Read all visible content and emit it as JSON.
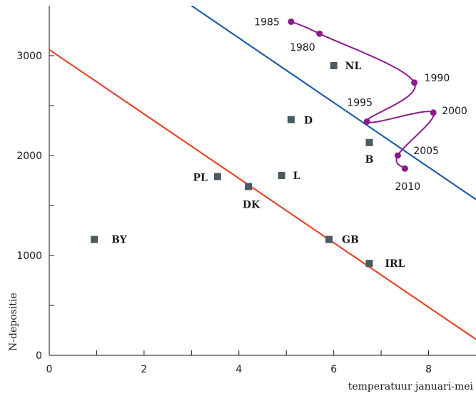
{
  "chart_data": {
    "type": "scatter",
    "title": "",
    "xlabel": "temperatuur januari-mei",
    "ylabel": "N-depositie",
    "xlim": [
      0,
      9
    ],
    "ylim": [
      0,
      3500
    ],
    "x_ticks": [
      0,
      2,
      4,
      6,
      8
    ],
    "x_minor_ticks": [
      1,
      3,
      5,
      7
    ],
    "y_ticks": [
      0,
      1000,
      2000,
      3000
    ],
    "y_minor_ticks": [
      500,
      1500,
      2500
    ],
    "grid": false,
    "colors": {
      "points": "#4a5a63",
      "trajectory": "#8b1a8b",
      "blue_line": "#1f5fa8",
      "red_line": "#e8452a",
      "axis": "#1a1a1a"
    },
    "country_points": [
      {
        "label": "NL",
        "x": 6.0,
        "y": 2900
      },
      {
        "label": "D",
        "x": 5.1,
        "y": 2360
      },
      {
        "label": "B",
        "x": 6.75,
        "y": 2130
      },
      {
        "label": "PL",
        "x": 3.55,
        "y": 1790
      },
      {
        "label": "L",
        "x": 4.9,
        "y": 1800
      },
      {
        "label": "DK",
        "x": 4.2,
        "y": 1690
      },
      {
        "label": "BY",
        "x": 0.95,
        "y": 1160
      },
      {
        "label": "GB",
        "x": 5.9,
        "y": 1160
      },
      {
        "label": "IRL",
        "x": 6.75,
        "y": 920
      }
    ],
    "trajectory_points": [
      {
        "label": "1985",
        "x": 5.1,
        "y": 3340
      },
      {
        "label": "1980",
        "x": 5.7,
        "y": 3220
      },
      {
        "label": "1990",
        "x": 7.7,
        "y": 2730
      },
      {
        "label": "1995",
        "x": 6.7,
        "y": 2340
      },
      {
        "label": "2000",
        "x": 8.1,
        "y": 2430
      },
      {
        "label": "2005",
        "x": 7.35,
        "y": 2000
      },
      {
        "label": "2010",
        "x": 7.5,
        "y": 1870
      }
    ],
    "reference_lines": [
      {
        "name": "blue",
        "points": [
          [
            3,
            3500
          ],
          [
            9,
            1560
          ]
        ]
      },
      {
        "name": "red",
        "points": [
          [
            0,
            3060
          ],
          [
            9,
            160
          ]
        ]
      }
    ]
  }
}
